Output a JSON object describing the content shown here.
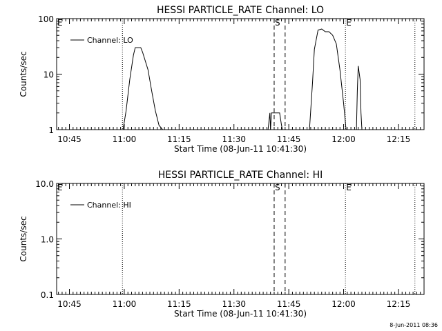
{
  "footer": "8-Jun-2011 08:36",
  "chart_data": [
    {
      "type": "line",
      "title": "HESSI PARTICLE_RATE Channel: LO",
      "xlabel": "Start Time (08-Jun-11 10:41:30)",
      "ylabel": "Counts/sec",
      "xlim": [
        "10:41:30",
        "12:22:00"
      ],
      "ylim": [
        1,
        100
      ],
      "yscale": "log",
      "x_ticks": [
        "10:45",
        "11:00",
        "11:15",
        "11:30",
        "11:45",
        "12:00",
        "12:15"
      ],
      "y_ticks": [
        "1",
        "10",
        "100"
      ],
      "legend": {
        "position": "top-left"
      },
      "series": [
        {
          "name": "Channel: LO",
          "x": [
            "10:41:30",
            "10:59:40",
            "11:00:30",
            "11:01:30",
            "11:02:30",
            "11:03:00",
            "11:04:30",
            "11:05:00",
            "11:06:30",
            "11:07:30",
            "11:08:30",
            "11:09:30",
            "11:10:30",
            "11:10:40",
            "11:39:20",
            "11:39:50",
            "11:40:00",
            "11:40:15",
            "11:40:30",
            "11:41:00",
            "11:42:30",
            "11:43:00",
            "11:43:15",
            "11:43:30",
            "11:50:40",
            "11:51:30",
            "11:52:00",
            "11:53:00",
            "11:54:00",
            "11:55:00",
            "11:56:00",
            "11:57:00",
            "11:58:00",
            "11:59:00",
            "12:00:00",
            "12:00:40",
            "12:01:00",
            "12:03:30",
            "12:03:45",
            "12:04:00",
            "12:04:30",
            "12:04:45",
            "12:05:00",
            "12:05:15",
            "12:22:00"
          ],
          "y": [
            1,
            1,
            2.2,
            8,
            22,
            30,
            30,
            25,
            12,
            5,
            2.2,
            1.2,
            1,
            null,
            1,
            2,
            1,
            2,
            2,
            2,
            2,
            1.2,
            1,
            null,
            1,
            7,
            28,
            62,
            65,
            58,
            58,
            50,
            35,
            12,
            3,
            1,
            null,
            1,
            5,
            14,
            8,
            2,
            1,
            null,
            null
          ]
        }
      ],
      "annotations": [
        {
          "text": "E",
          "x": "10:41:30",
          "style": "text"
        },
        {
          "text": "",
          "x": "10:59:30",
          "style": "dotted"
        },
        {
          "text": "S",
          "x": "11:41:00",
          "style": "dashed"
        },
        {
          "text": "",
          "x": "11:44:00",
          "style": "dashed"
        },
        {
          "text": "E",
          "x": "12:00:30",
          "style": "dotted"
        },
        {
          "text": "",
          "x": "12:19:30",
          "style": "dotted"
        }
      ]
    },
    {
      "type": "line",
      "title": "HESSI PARTICLE_RATE Channel: HI",
      "xlabel": "Start Time (08-Jun-11 10:41:30)",
      "ylabel": "Counts/sec",
      "xlim": [
        "10:41:30",
        "12:22:00"
      ],
      "ylim": [
        0.1,
        10
      ],
      "yscale": "log",
      "x_ticks": [
        "10:45",
        "11:00",
        "11:15",
        "11:30",
        "11:45",
        "12:00",
        "12:15"
      ],
      "y_ticks": [
        "0.1",
        "1.0",
        "10.0"
      ],
      "legend": {
        "position": "top-left"
      },
      "series": [
        {
          "name": "Channel: HI",
          "x": [],
          "y": []
        }
      ],
      "annotations": [
        {
          "text": "E",
          "x": "10:41:30",
          "style": "text"
        },
        {
          "text": "",
          "x": "10:59:30",
          "style": "dotted"
        },
        {
          "text": "S",
          "x": "11:41:00",
          "style": "dashed"
        },
        {
          "text": "",
          "x": "11:44:00",
          "style": "dashed"
        },
        {
          "text": "E",
          "x": "12:00:30",
          "style": "dotted"
        },
        {
          "text": "",
          "x": "12:19:30",
          "style": "dotted"
        }
      ]
    }
  ]
}
